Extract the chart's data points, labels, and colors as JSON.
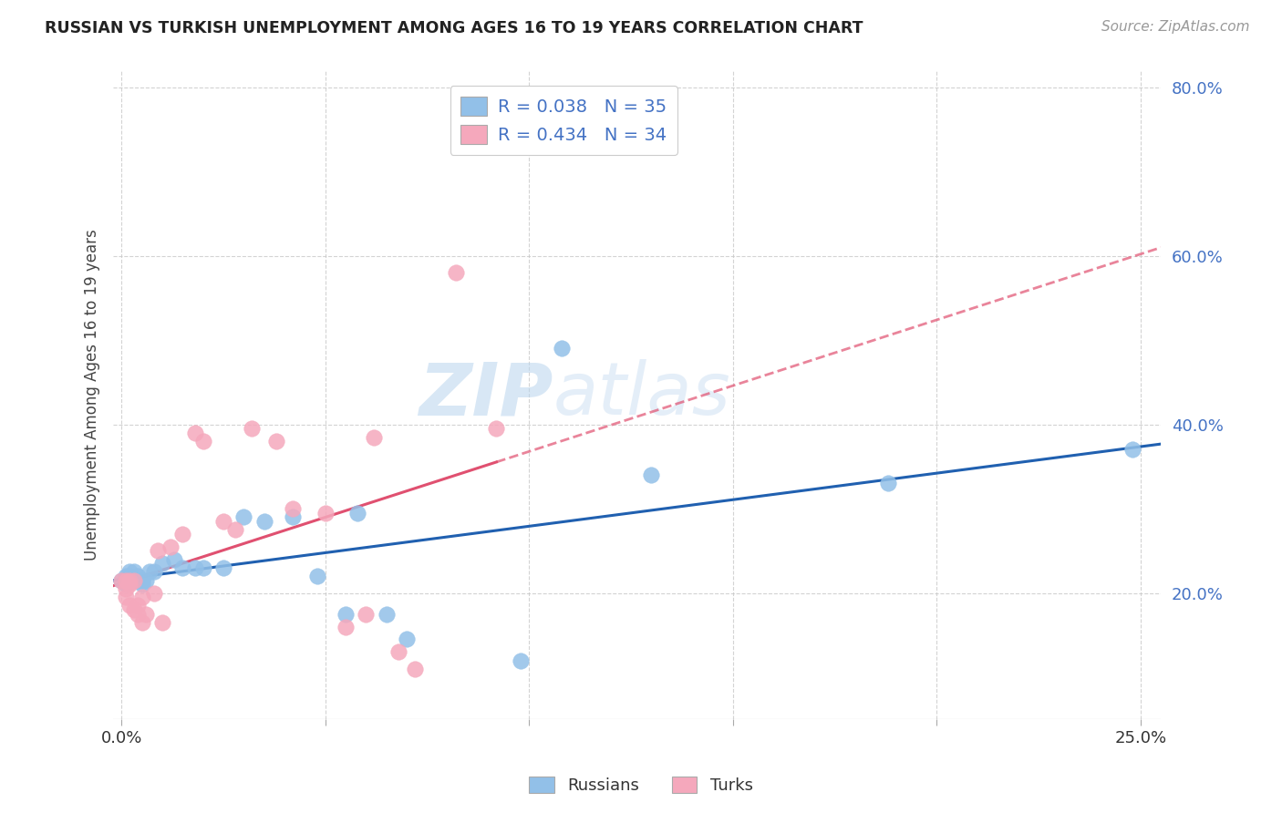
{
  "title": "RUSSIAN VS TURKISH UNEMPLOYMENT AMONG AGES 16 TO 19 YEARS CORRELATION CHART",
  "source": "Source: ZipAtlas.com",
  "ylabel": "Unemployment Among Ages 16 to 19 years",
  "xlim": [
    -0.002,
    0.255
  ],
  "ylim": [
    0.05,
    0.82
  ],
  "xticks": [
    0.0,
    0.05,
    0.1,
    0.15,
    0.2,
    0.25
  ],
  "yticks": [
    0.2,
    0.4,
    0.6,
    0.8
  ],
  "xtick_labels": [
    "0.0%",
    "",
    "",
    "",
    "",
    "25.0%"
  ],
  "ytick_labels": [
    "20.0%",
    "40.0%",
    "60.0%",
    "80.0%"
  ],
  "russian_color": "#92c0e8",
  "turkish_color": "#f5a8bc",
  "russian_line_color": "#2060b0",
  "turkish_line_color": "#e05070",
  "russian_label": "Russians",
  "turkish_label": "Turks",
  "russian_R": "0.038",
  "russian_N": "35",
  "turkish_R": "0.434",
  "turkish_N": "34",
  "legend_text_color": "#4472c4",
  "watermark_zip": "ZIP",
  "watermark_atlas": "atlas",
  "background_color": "#ffffff",
  "grid_color": "#c8c8c8",
  "russians_x": [
    0.0,
    0.001,
    0.001,
    0.001,
    0.002,
    0.002,
    0.002,
    0.003,
    0.003,
    0.004,
    0.004,
    0.005,
    0.005,
    0.006,
    0.007,
    0.008,
    0.01,
    0.013,
    0.015,
    0.018,
    0.02,
    0.025,
    0.03,
    0.035,
    0.042,
    0.048,
    0.055,
    0.058,
    0.065,
    0.07,
    0.098,
    0.108,
    0.13,
    0.188,
    0.248
  ],
  "russians_y": [
    0.215,
    0.21,
    0.215,
    0.22,
    0.215,
    0.22,
    0.225,
    0.215,
    0.225,
    0.215,
    0.22,
    0.21,
    0.215,
    0.215,
    0.225,
    0.225,
    0.235,
    0.24,
    0.23,
    0.23,
    0.23,
    0.23,
    0.29,
    0.285,
    0.29,
    0.22,
    0.175,
    0.295,
    0.175,
    0.145,
    0.12,
    0.49,
    0.34,
    0.33,
    0.37
  ],
  "turks_x": [
    0.0,
    0.001,
    0.001,
    0.001,
    0.002,
    0.002,
    0.002,
    0.003,
    0.003,
    0.004,
    0.004,
    0.005,
    0.005,
    0.006,
    0.008,
    0.009,
    0.01,
    0.012,
    0.015,
    0.018,
    0.02,
    0.025,
    0.028,
    0.032,
    0.038,
    0.042,
    0.05,
    0.055,
    0.06,
    0.062,
    0.068,
    0.072,
    0.082,
    0.092
  ],
  "turks_y": [
    0.215,
    0.195,
    0.205,
    0.215,
    0.185,
    0.21,
    0.215,
    0.18,
    0.215,
    0.175,
    0.185,
    0.165,
    0.195,
    0.175,
    0.2,
    0.25,
    0.165,
    0.255,
    0.27,
    0.39,
    0.38,
    0.285,
    0.275,
    0.395,
    0.38,
    0.3,
    0.295,
    0.16,
    0.175,
    0.385,
    0.13,
    0.11,
    0.58,
    0.395
  ]
}
